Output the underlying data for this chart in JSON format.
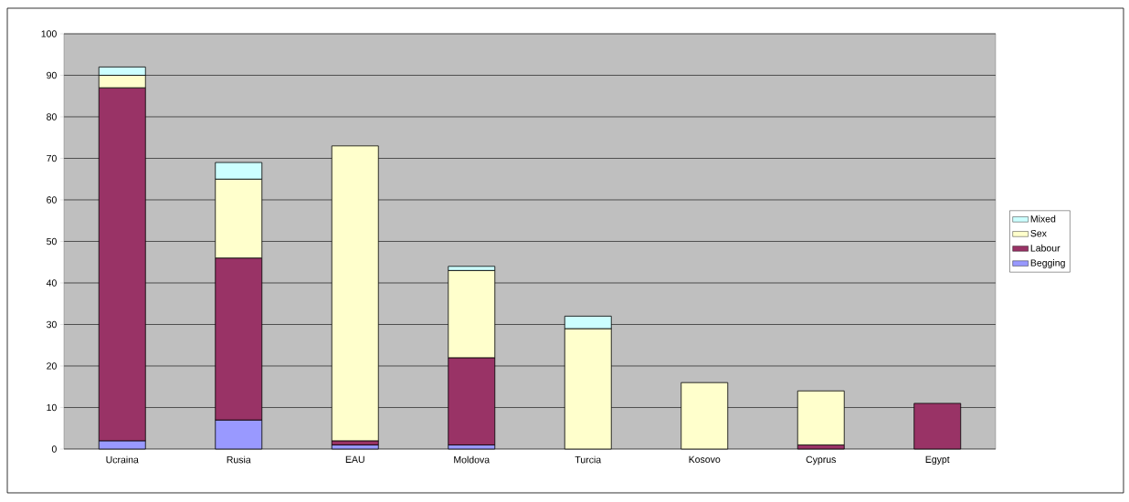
{
  "chart_data": {
    "type": "bar",
    "stacked": true,
    "categories": [
      "Ucraina",
      "Rusia",
      "EAU",
      "Moldova",
      "Turcia",
      "Kosovo",
      "Cyprus",
      "Egypt"
    ],
    "series": [
      {
        "name": "Begging",
        "color": "#9999ff",
        "values": [
          2,
          7,
          1,
          1,
          null,
          null,
          null,
          null
        ]
      },
      {
        "name": "Labour",
        "color": "#993366",
        "values": [
          85,
          39,
          1,
          21,
          null,
          null,
          1,
          11
        ]
      },
      {
        "name": "Sex",
        "color": "#ffffcc",
        "values": [
          3,
          19,
          71,
          21,
          29,
          16,
          13,
          null
        ]
      },
      {
        "name": "Mixed",
        "color": "#ccffff",
        "values": [
          2,
          4,
          null,
          1,
          3,
          null,
          null,
          null
        ]
      }
    ],
    "ylim": [
      0,
      100
    ],
    "yticks": [
      0,
      10,
      20,
      30,
      40,
      50,
      60,
      70,
      80,
      90,
      100
    ],
    "grid": "y",
    "legend": "right"
  }
}
